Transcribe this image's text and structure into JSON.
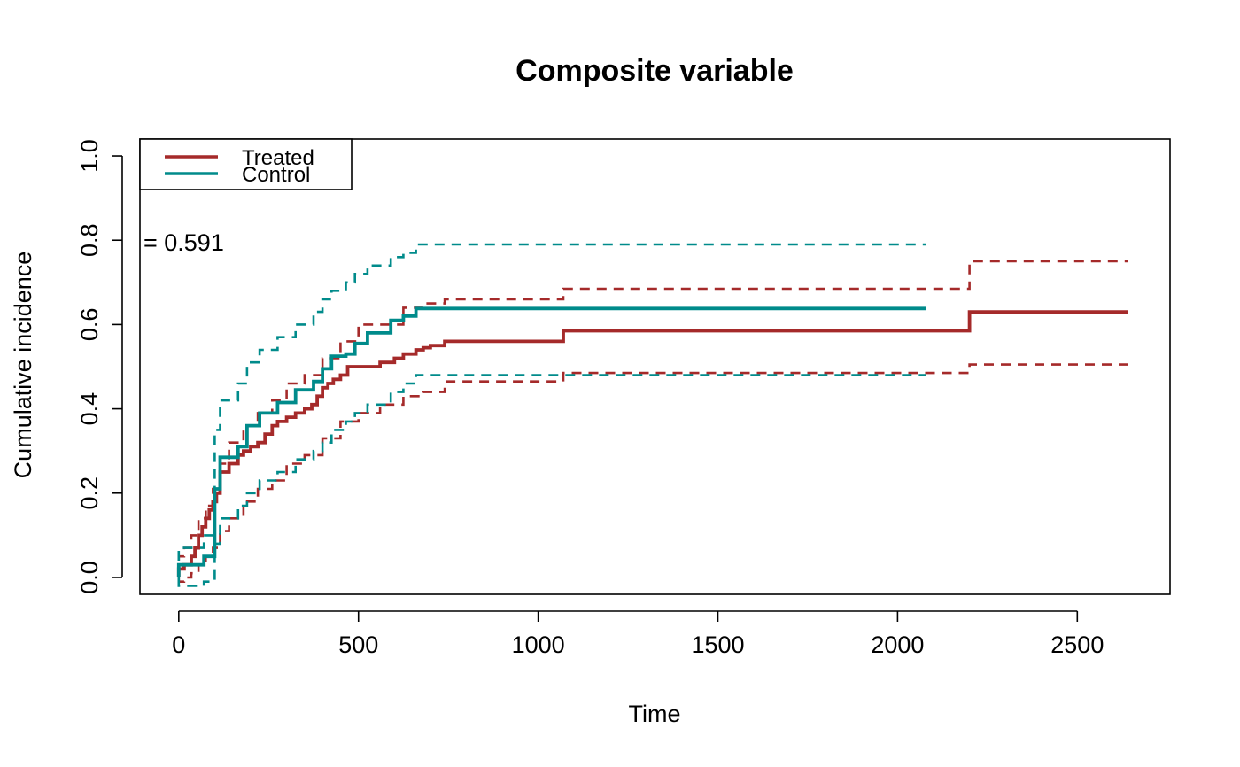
{
  "chart_data": {
    "type": "line",
    "title": "Composite variable",
    "xlabel": "Time",
    "ylabel": "Cumulative incidence",
    "xlim": [
      -108,
      2758
    ],
    "ylim": [
      -0.04,
      1.04
    ],
    "x_ticks": [
      0,
      500,
      1000,
      1500,
      2000,
      2500
    ],
    "y_ticks": [
      0.0,
      0.2,
      0.4,
      0.6,
      0.8,
      1.0
    ],
    "x_tick_labels": [
      "0",
      "500",
      "1000",
      "1500",
      "2000",
      "2500"
    ],
    "y_tick_labels": [
      "0.0",
      "0.2",
      "0.4",
      "0.6",
      "0.8",
      "1.0"
    ],
    "grid": false,
    "legend_position": "top-left",
    "annotation": "= 0.591",
    "series": [
      {
        "name": "Treated",
        "color": "#A52A2A",
        "style": "solid",
        "x": [
          0,
          15,
          35,
          45,
          55,
          65,
          75,
          85,
          95,
          105,
          115,
          140,
          165,
          180,
          200,
          220,
          240,
          260,
          275,
          300,
          325,
          350,
          370,
          385,
          400,
          415,
          430,
          450,
          470,
          500,
          560,
          600,
          625,
          640,
          660,
          680,
          700,
          740,
          1000,
          1070,
          2200,
          2640
        ],
        "y": [
          0.02,
          0.03,
          0.05,
          0.07,
          0.1,
          0.12,
          0.14,
          0.16,
          0.18,
          0.2,
          0.25,
          0.27,
          0.29,
          0.3,
          0.31,
          0.32,
          0.34,
          0.36,
          0.37,
          0.38,
          0.39,
          0.4,
          0.41,
          0.43,
          0.45,
          0.46,
          0.47,
          0.48,
          0.5,
          0.5,
          0.51,
          0.52,
          0.53,
          0.53,
          0.54,
          0.545,
          0.55,
          0.56,
          0.56,
          0.585,
          0.63,
          0.63
        ]
      },
      {
        "name": "Control",
        "color": "#008B8B",
        "style": "solid",
        "x": [
          0,
          20,
          50,
          70,
          100,
          115,
          165,
          190,
          225,
          275,
          325,
          375,
          400,
          425,
          465,
          490,
          525,
          590,
          625,
          660,
          2080
        ],
        "y": [
          0.03,
          0.03,
          0.03,
          0.05,
          0.21,
          0.285,
          0.31,
          0.36,
          0.39,
          0.415,
          0.445,
          0.465,
          0.495,
          0.525,
          0.53,
          0.555,
          0.58,
          0.61,
          0.62,
          0.638,
          0.638
        ]
      },
      {
        "name": "Treated upper CI",
        "color": "#A52A2A",
        "style": "dashed",
        "x": [
          0,
          15,
          35,
          55,
          75,
          95,
          115,
          140,
          180,
          220,
          260,
          300,
          350,
          400,
          450,
          500,
          560,
          625,
          680,
          740,
          1070,
          2200,
          2640
        ],
        "y": [
          0.05,
          0.07,
          0.1,
          0.14,
          0.17,
          0.21,
          0.27,
          0.32,
          0.36,
          0.39,
          0.42,
          0.46,
          0.48,
          0.52,
          0.56,
          0.6,
          0.6,
          0.64,
          0.65,
          0.66,
          0.685,
          0.75,
          0.75
        ]
      },
      {
        "name": "Treated lower CI",
        "color": "#A52A2A",
        "style": "dashed",
        "x": [
          0,
          15,
          35,
          55,
          75,
          95,
          115,
          140,
          180,
          220,
          260,
          300,
          350,
          400,
          450,
          500,
          560,
          625,
          680,
          740,
          1070,
          2200,
          2640
        ],
        "y": [
          -0.01,
          0.0,
          0.01,
          0.03,
          0.05,
          0.07,
          0.11,
          0.14,
          0.18,
          0.21,
          0.23,
          0.27,
          0.29,
          0.33,
          0.37,
          0.39,
          0.41,
          0.43,
          0.44,
          0.465,
          0.485,
          0.505,
          0.505
        ]
      },
      {
        "name": "Control upper CI",
        "color": "#008B8B",
        "style": "dashed",
        "x": [
          0,
          20,
          70,
          100,
          115,
          165,
          190,
          225,
          275,
          325,
          375,
          400,
          425,
          465,
          490,
          525,
          590,
          625,
          660,
          2080
        ],
        "y": [
          0.07,
          0.07,
          0.1,
          0.35,
          0.42,
          0.46,
          0.51,
          0.54,
          0.57,
          0.6,
          0.63,
          0.66,
          0.68,
          0.7,
          0.72,
          0.74,
          0.76,
          0.77,
          0.79,
          0.79
        ]
      },
      {
        "name": "Control lower CI",
        "color": "#008B8B",
        "style": "dashed",
        "x": [
          0,
          20,
          70,
          100,
          115,
          165,
          190,
          225,
          275,
          325,
          375,
          400,
          425,
          465,
          490,
          525,
          590,
          625,
          660,
          2080
        ],
        "y": [
          -0.02,
          -0.02,
          -0.01,
          0.08,
          0.14,
          0.17,
          0.2,
          0.23,
          0.25,
          0.28,
          0.3,
          0.32,
          0.35,
          0.37,
          0.39,
          0.41,
          0.44,
          0.46,
          0.48,
          0.48
        ]
      }
    ]
  }
}
